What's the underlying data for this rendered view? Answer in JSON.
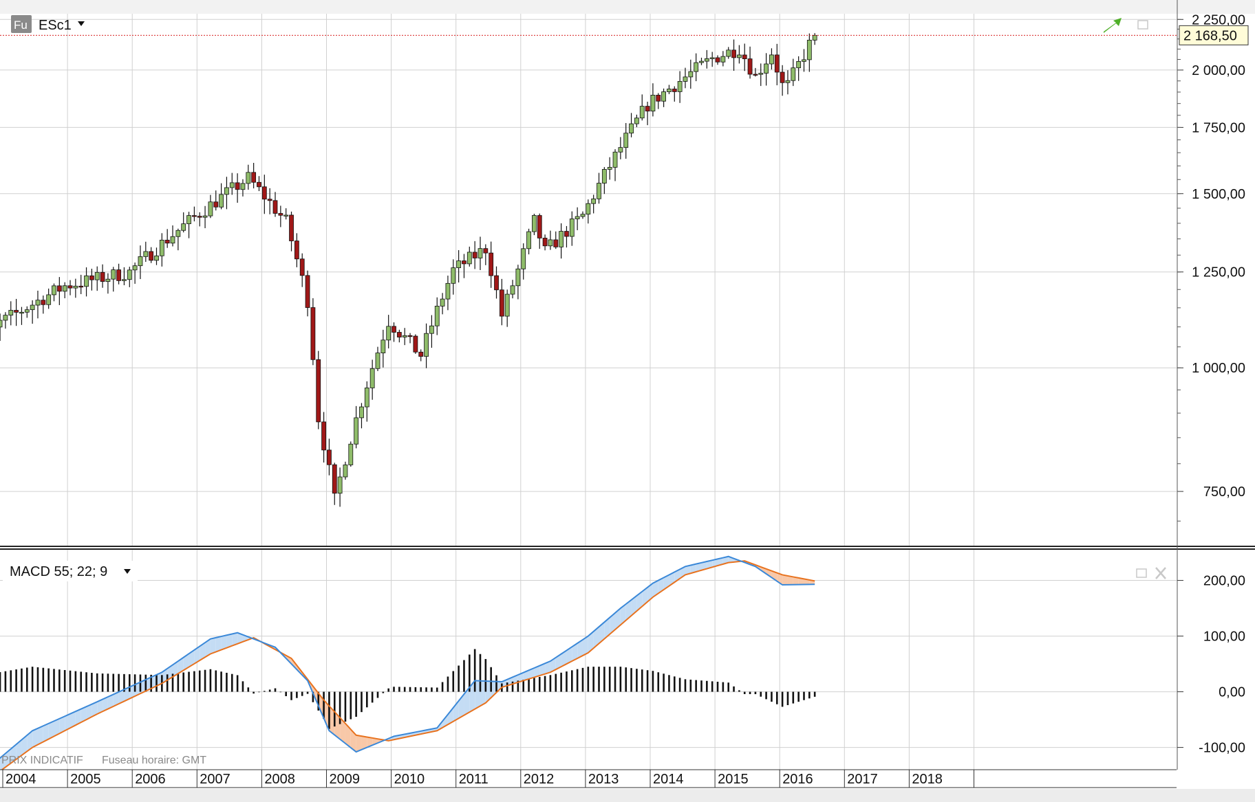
{
  "instrument": {
    "badge": "Fu",
    "symbol": "ESc1",
    "dropdown_icon": "caret-down-icon",
    "trend_icon": "trend-up-arrow-icon",
    "panel_icon": "restore-icon"
  },
  "indicator": {
    "label": "MACD 55; 22; 9",
    "dropdown_icon": "caret-down-icon",
    "restore_icon": "restore-icon",
    "close_icon": "close-icon"
  },
  "footer": {
    "price_note": "PRIX INDICATIF",
    "timezone": "Fuseau horaire: GMT"
  },
  "colors": {
    "up_candle": "#8fbc6a",
    "down_candle": "#a01818",
    "macd_line": "#3a88d8",
    "signal_line": "#e8721e",
    "macd_fill_above": "#c4dcf4",
    "signal_fill_above": "#f8c8a8",
    "last_price_line": "#d82020",
    "grid": "#d0d0d0"
  },
  "chart_data": [
    {
      "type": "candlestick",
      "timeframe": "monthly",
      "last_price_label": "2 168,50",
      "last_price": 2168.5,
      "scale": "log",
      "ylim": [
        660,
        2280
      ],
      "yticks": [
        {
          "value": 750,
          "label": "750,00"
        },
        {
          "value": 1000,
          "label": "1 000,00"
        },
        {
          "value": 1250,
          "label": "1 250,00"
        },
        {
          "value": 1500,
          "label": "1 500,00"
        },
        {
          "value": 1750,
          "label": "1 750,00"
        },
        {
          "value": 2000,
          "label": "2 000,00"
        },
        {
          "value": 2250,
          "label": "2 250,00"
        }
      ],
      "xticks": [
        "2004",
        "2005",
        "2006",
        "2007",
        "2008",
        "2009",
        "2010",
        "2011",
        "2012",
        "2013",
        "2014",
        "2015",
        "2016",
        "2017",
        "2018"
      ],
      "anchors_close": [
        [
          "2003-06",
          1000
        ],
        [
          "2003-12",
          1110
        ],
        [
          "2004-12",
          1210
        ],
        [
          "2005-12",
          1250
        ],
        [
          "2006-12",
          1420
        ],
        [
          "2007-10",
          1555
        ],
        [
          "2008-05",
          1405
        ],
        [
          "2008-09",
          1170
        ],
        [
          "2008-11",
          890
        ],
        [
          "2009-02",
          735
        ],
        [
          "2009-12",
          1115
        ],
        [
          "2010-06",
          1030
        ],
        [
          "2010-12",
          1255
        ],
        [
          "2011-06",
          1320
        ],
        [
          "2011-09",
          1130
        ],
        [
          "2011-12",
          1255
        ],
        [
          "2012-03",
          1405
        ],
        [
          "2012-05",
          1310
        ],
        [
          "2012-12",
          1425
        ],
        [
          "2013-12",
          1845
        ],
        [
          "2014-12",
          2055
        ],
        [
          "2015-05",
          2105
        ],
        [
          "2015-08",
          1970
        ],
        [
          "2015-11",
          2085
        ],
        [
          "2016-01",
          1930
        ],
        [
          "2016-02",
          1930
        ],
        [
          "2016-07",
          2168.5
        ]
      ]
    },
    {
      "type": "line",
      "title": "MACD 55; 22; 9",
      "ylim": [
        -140,
        255
      ],
      "yticks": [
        {
          "value": -100,
          "label": "-100,00"
        },
        {
          "value": 0,
          "label": "0,00"
        },
        {
          "value": 100,
          "label": "100,00"
        },
        {
          "value": 200,
          "label": "200,00"
        }
      ],
      "macd_anchors": [
        [
          "2003-06",
          -168
        ],
        [
          "2004-06",
          -70
        ],
        [
          "2005-06",
          -18
        ],
        [
          "2006-06",
          35
        ],
        [
          "2007-03",
          95
        ],
        [
          "2007-08",
          106
        ],
        [
          "2008-03",
          80
        ],
        [
          "2008-09",
          20
        ],
        [
          "2009-01",
          -70
        ],
        [
          "2009-06",
          -108
        ],
        [
          "2010-01",
          -80
        ],
        [
          "2010-09",
          -65
        ],
        [
          "2011-04",
          20
        ],
        [
          "2011-09",
          18
        ],
        [
          "2012-06",
          55
        ],
        [
          "2013-01",
          100
        ],
        [
          "2013-07",
          150
        ],
        [
          "2014-01",
          195
        ],
        [
          "2014-07",
          225
        ],
        [
          "2015-03",
          243
        ],
        [
          "2015-08",
          225
        ],
        [
          "2016-01",
          192
        ],
        [
          "2016-07",
          193
        ]
      ],
      "signal_anchors": [
        [
          "2003-06",
          -185
        ],
        [
          "2004-06",
          -100
        ],
        [
          "2005-06",
          -40
        ],
        [
          "2006-06",
          15
        ],
        [
          "2007-03",
          68
        ],
        [
          "2007-11",
          97
        ],
        [
          "2008-06",
          60
        ],
        [
          "2008-12",
          -15
        ],
        [
          "2009-06",
          -78
        ],
        [
          "2009-12",
          -88
        ],
        [
          "2010-09",
          -70
        ],
        [
          "2011-06",
          -20
        ],
        [
          "2011-09",
          8
        ],
        [
          "2012-06",
          35
        ],
        [
          "2013-01",
          70
        ],
        [
          "2013-07",
          120
        ],
        [
          "2014-01",
          170
        ],
        [
          "2014-07",
          210
        ],
        [
          "2015-03",
          232
        ],
        [
          "2015-06",
          235
        ],
        [
          "2016-01",
          210
        ],
        [
          "2016-07",
          199
        ]
      ]
    }
  ]
}
